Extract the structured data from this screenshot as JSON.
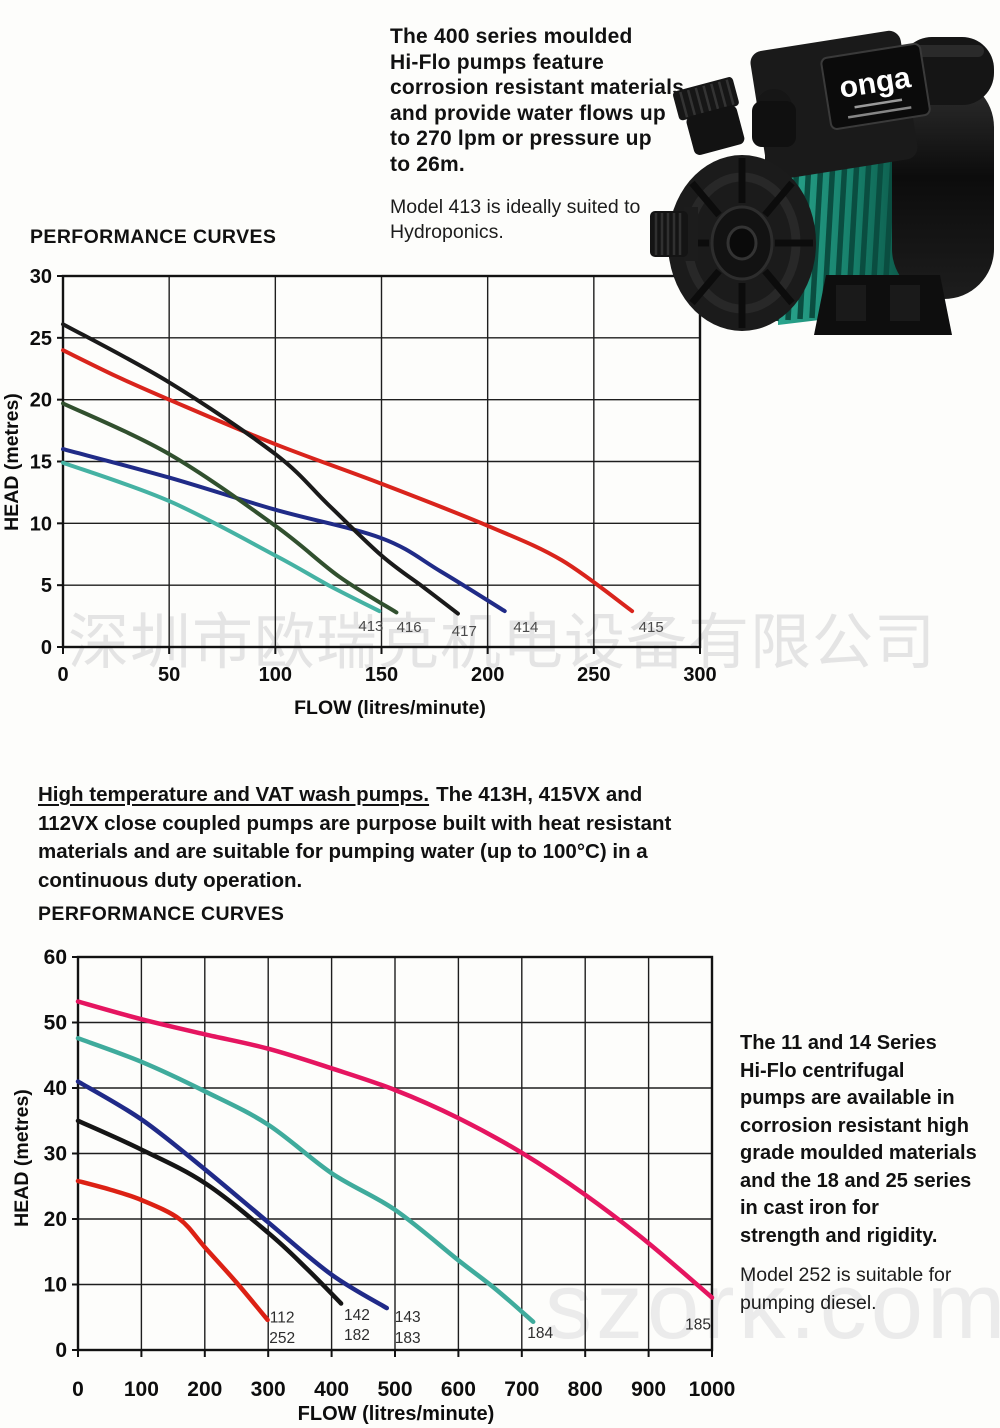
{
  "page": {
    "intro_lines": [
      "The 400 series moulded",
      "Hi-Flo pumps feature",
      "corrosion resistant materials",
      "and provide water flows up",
      "to 270 lpm or pressure up",
      "to 26m."
    ],
    "intro_note_lines": [
      "Model 413 is ideally suited to",
      "Hydroponics."
    ],
    "mid_lead": "High temperature and VAT wash pumps.",
    "mid_lead_rest": "The 413H, 415VX and",
    "mid_lines": [
      "112VX close coupled pumps are purpose built with heat resistant",
      "materials and are suitable for pumping water (up to 100°C) in a",
      "continuous duty operation."
    ],
    "series_lines": [
      "The 11 and 14 Series",
      "Hi-Flo centrifugal",
      "pumps are available in",
      "corrosion resistant high",
      "grade moulded materials",
      "and the 18 and 25 series",
      "in cast iron for",
      "strength and rigidity."
    ],
    "model252_lines": [
      "Model 252 is suitable for",
      "pumping diesel."
    ],
    "watermark_cn": "深圳市欧瑞克机电设备有限公司",
    "watermark_web": "szork.com"
  },
  "pump_photo": {
    "brand": "onga",
    "body_color": "#181818",
    "fin_color": "#1d8a76"
  },
  "chart_data": [
    {
      "type": "line",
      "title": "PERFORMANCE CURVES",
      "xlabel": "FLOW (litres/minute)",
      "ylabel": "HEAD (metres)",
      "xlim": [
        0,
        300
      ],
      "ylim": [
        0,
        30
      ],
      "xticks": [
        0,
        50,
        100,
        150,
        200,
        250,
        300
      ],
      "yticks": [
        0,
        5,
        10,
        15,
        20,
        25,
        30
      ],
      "grid": true,
      "series": [
        {
          "name": "415",
          "color": "#d9241c",
          "points": [
            [
              0,
              24
            ],
            [
              25,
              21.9
            ],
            [
              50,
              20
            ],
            [
              100,
              16.4
            ],
            [
              150,
              13.2
            ],
            [
              200,
              9.8
            ],
            [
              235,
              7
            ],
            [
              268,
              2.9
            ]
          ]
        },
        {
          "name": "413",
          "color": "#45b2a3",
          "points": [
            [
              0,
              14.9
            ],
            [
              50,
              11.8
            ],
            [
              100,
              7.4
            ],
            [
              125,
              5
            ],
            [
              149,
              2.9
            ]
          ]
        },
        {
          "name": "414",
          "color": "#202b87",
          "points": [
            [
              0,
              16
            ],
            [
              50,
              13.7
            ],
            [
              100,
              11.1
            ],
            [
              150,
              8.8
            ],
            [
              178,
              6.1
            ],
            [
              208,
              2.9
            ]
          ]
        },
        {
          "name": "416",
          "color": "#31502e",
          "points": [
            [
              0,
              19.7
            ],
            [
              50,
              15.6
            ],
            [
              100,
              9.8
            ],
            [
              130,
              5.7
            ],
            [
              157,
              2.8
            ]
          ]
        },
        {
          "name": "417",
          "color": "#1a1a1a",
          "points": [
            [
              0,
              26.1
            ],
            [
              50,
              21.4
            ],
            [
              100,
              15.6
            ],
            [
              125,
              11.5
            ],
            [
              150,
              7.4
            ],
            [
              170,
              4.8
            ],
            [
              186,
              2.7
            ]
          ]
        }
      ],
      "curve_labels": [
        {
          "text": "413",
          "x": 145,
          "y": 1.3
        },
        {
          "text": "416",
          "x": 163,
          "y": 1.2
        },
        {
          "text": "417",
          "x": 189,
          "y": 0.9
        },
        {
          "text": "414",
          "x": 218,
          "y": 1.2
        },
        {
          "text": "415",
          "x": 277,
          "y": 1.2
        }
      ]
    },
    {
      "type": "line",
      "title": "PERFORMANCE CURVES",
      "xlabel": "FLOW (litres/minute)",
      "ylabel": "HEAD (metres)",
      "xlim": [
        0,
        1000
      ],
      "ylim": [
        0,
        60
      ],
      "xticks": [
        0,
        100,
        200,
        300,
        400,
        500,
        600,
        700,
        800,
        900,
        1000
      ],
      "yticks": [
        0,
        10,
        20,
        30,
        40,
        50,
        60
      ],
      "grid": true,
      "series": [
        {
          "name": "185",
          "color": "#e51560",
          "points": [
            [
              0,
              53.2
            ],
            [
              100,
              50.5
            ],
            [
              200,
              48.2
            ],
            [
              300,
              46
            ],
            [
              400,
              43
            ],
            [
              500,
              39.7
            ],
            [
              600,
              35.4
            ],
            [
              700,
              30.1
            ],
            [
              800,
              23.7
            ],
            [
              900,
              16.3
            ],
            [
              1000,
              8
            ]
          ]
        },
        {
          "name": "184",
          "color": "#3fab9c",
          "points": [
            [
              0,
              47.6
            ],
            [
              100,
              44
            ],
            [
              200,
              39.5
            ],
            [
              300,
              34.4
            ],
            [
              400,
              27
            ],
            [
              500,
              21.4
            ],
            [
              600,
              13.7
            ],
            [
              660,
              9.2
            ],
            [
              718,
              4.3
            ]
          ]
        },
        {
          "name": "143 / 183",
          "color": "#202a88",
          "points": [
            [
              0,
              41
            ],
            [
              100,
              35.2
            ],
            [
              200,
              27.6
            ],
            [
              300,
              19.5
            ],
            [
              400,
              11.5
            ],
            [
              487,
              6.4
            ]
          ]
        },
        {
          "name": "142 / 182",
          "color": "#151515",
          "points": [
            [
              0,
              35
            ],
            [
              100,
              30.6
            ],
            [
              200,
              25.5
            ],
            [
              300,
              17.9
            ],
            [
              360,
              12.5
            ],
            [
              415,
              7.1
            ]
          ]
        },
        {
          "name": "112 / 252",
          "color": "#dc2114",
          "points": [
            [
              0,
              25.8
            ],
            [
              50,
              24.5
            ],
            [
              100,
              22.9
            ],
            [
              160,
              20
            ],
            [
              200,
              15.7
            ],
            [
              250,
              10.3
            ],
            [
              299,
              4.6
            ]
          ]
        }
      ],
      "curve_labels": [
        {
          "text": "112",
          "x": 322,
          "y": 4.2
        },
        {
          "text": "252",
          "x": 322,
          "y": 1.1
        },
        {
          "text": "142",
          "x": 440,
          "y": 4.6
        },
        {
          "text": "182",
          "x": 440,
          "y": 1.5
        },
        {
          "text": "143",
          "x": 520,
          "y": 4.3
        },
        {
          "text": "183",
          "x": 520,
          "y": 1.1
        },
        {
          "text": "184",
          "x": 729,
          "y": 1.8
        },
        {
          "text": "185",
          "x": 978,
          "y": 3.1
        }
      ]
    }
  ]
}
